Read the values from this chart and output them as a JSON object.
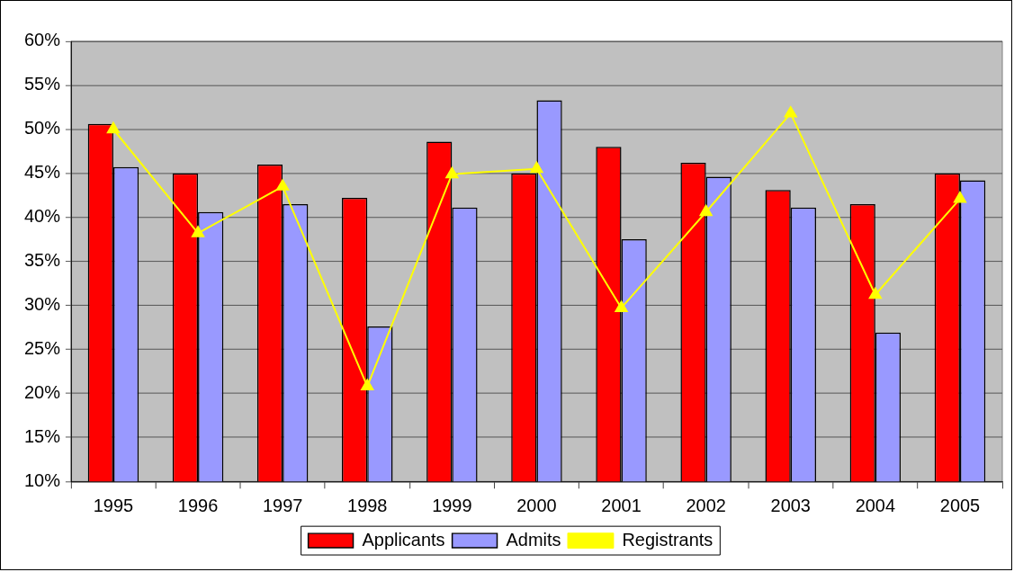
{
  "chart_data": {
    "type": "bar",
    "categories": [
      "1995",
      "1996",
      "1997",
      "1998",
      "1999",
      "2000",
      "2001",
      "2002",
      "2003",
      "2004",
      "2005"
    ],
    "series": [
      {
        "name": "Applicants",
        "color": "#ff0000",
        "values": [
          50.6,
          45,
          46,
          42.2,
          48.6,
          45,
          48,
          46.2,
          43.1,
          41.5,
          45
        ]
      },
      {
        "name": "Admits",
        "color": "#9999ff",
        "values": [
          45.7,
          40.6,
          41.5,
          27.6,
          41.1,
          53.3,
          37.5,
          44.6,
          41.1,
          26.9,
          44.2
        ]
      },
      {
        "name": "Registrants",
        "type": "line",
        "color": "#ffff00",
        "marker": "triangle",
        "values": [
          50,
          38.2,
          43.5,
          20.8,
          44.9,
          45.5,
          29.7,
          40.6,
          51.8,
          31.2,
          42.1
        ]
      }
    ],
    "ylim": [
      10,
      60
    ],
    "yticks": [
      {
        "value": 10,
        "label": "10%"
      },
      {
        "value": 15,
        "label": "15%"
      },
      {
        "value": 20,
        "label": "20%"
      },
      {
        "value": 25,
        "label": "25%"
      },
      {
        "value": 30,
        "label": "30%"
      },
      {
        "value": 35,
        "label": "35%"
      },
      {
        "value": 40,
        "label": "40%"
      },
      {
        "value": 45,
        "label": "45%"
      },
      {
        "value": 50,
        "label": "50%"
      },
      {
        "value": 55,
        "label": "55%"
      },
      {
        "value": 60,
        "label": "60%"
      }
    ],
    "grid": "y",
    "legend": "bottom"
  }
}
